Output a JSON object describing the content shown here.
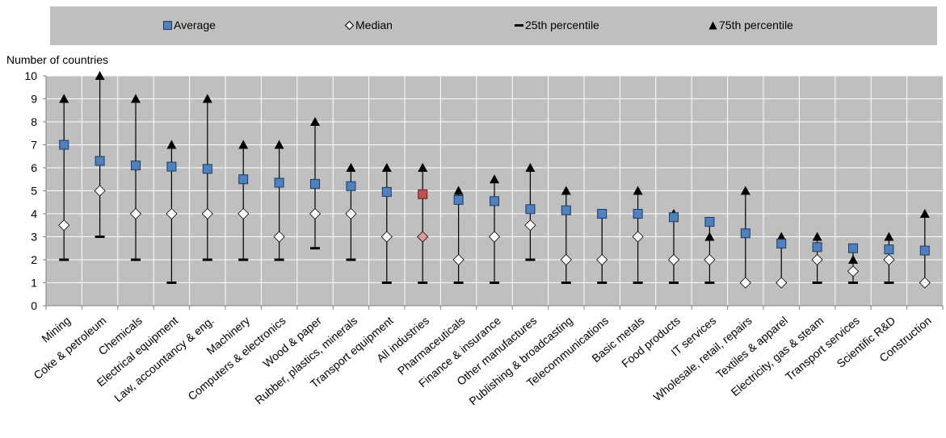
{
  "chart_data": {
    "type": "scatter",
    "ylabel": "Number of countries",
    "ylim": [
      0,
      10
    ],
    "yticks": [
      "0",
      "1",
      "2",
      "3",
      "4",
      "5",
      "6",
      "7",
      "8",
      "9",
      "10"
    ],
    "grid": true,
    "legend_position": "top",
    "legend": {
      "average": "Average",
      "median": "Median",
      "p25": "25th percentile",
      "p75": "75th percentile"
    },
    "colors": {
      "plot_bg": "#bfbfbf",
      "grid": "#ffffff",
      "average": "#4f81bd",
      "average_highlight": "#c0504d",
      "median": "#ffffff",
      "median_highlight": "#e6999b",
      "marker_dark": "#000000"
    },
    "highlight": "All industries",
    "categories": [
      "Mining",
      "Coke & petroleum",
      "Chemicals",
      "Electrical equipment",
      "Law, accountancy & eng.",
      "Machinery",
      "Computers & electronics",
      "Wood & paper",
      "Rubber, plastics, minerals",
      "Transport equipment",
      "All industries",
      "Pharmaceuticals",
      "Finance & insurance",
      "Other manufactures",
      "Publishing & broadcasting",
      "Telecommunications",
      "Basic metals",
      "Food products",
      "IT services",
      "Wholesale, retail, repairs",
      "Textiles & apparel",
      "Electricity, gas & steam",
      "Transport services",
      "Scientific R&D",
      "Construction"
    ],
    "series": [
      {
        "name": "Average",
        "values": [
          7.0,
          6.3,
          6.1,
          6.05,
          5.95,
          5.5,
          5.35,
          5.3,
          5.2,
          4.95,
          4.85,
          4.6,
          4.55,
          4.2,
          4.15,
          4.0,
          4.0,
          3.85,
          3.65,
          3.15,
          2.7,
          2.55,
          2.5,
          2.45,
          2.4
        ]
      },
      {
        "name": "Median",
        "values": [
          3.5,
          5,
          4,
          4,
          4,
          4,
          3,
          4,
          4,
          3,
          3,
          2,
          3,
          3.5,
          2,
          2,
          3,
          2,
          2,
          1,
          1,
          2,
          1.5,
          2,
          1
        ]
      },
      {
        "name": "25th percentile",
        "values": [
          2,
          3,
          2,
          1,
          2,
          2,
          2,
          2.5,
          2,
          1,
          1,
          1,
          1,
          2,
          1,
          1,
          1,
          1,
          1,
          1,
          1,
          1,
          1,
          1,
          1
        ]
      },
      {
        "name": "75th percentile",
        "values": [
          9,
          10,
          9,
          7,
          9,
          7,
          7,
          8,
          6,
          6,
          6,
          5,
          5.5,
          6,
          5,
          4,
          5,
          4,
          3,
          5,
          3,
          3,
          2,
          3,
          4
        ]
      }
    ]
  }
}
